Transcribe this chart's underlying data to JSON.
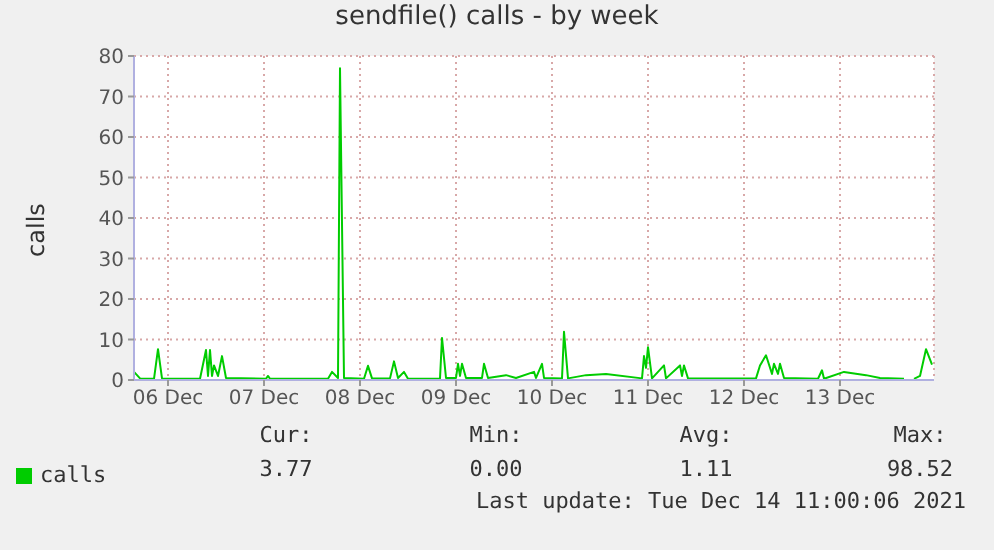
{
  "chart_data": {
    "type": "line",
    "title": "sendfile() calls - by week",
    "ylabel": "calls",
    "x": [
      "2021-12-06T03:30",
      "2021-12-06T05:00",
      "2021-12-06T08:30",
      "2021-12-06T09:30",
      "2021-12-06T10:30",
      "2021-12-06T20:00",
      "2021-12-06T21:30",
      "2021-12-06T22:00",
      "2021-12-06T22:30",
      "2021-12-06T23:00",
      "2021-12-06T23:30",
      "2021-12-07T00:30",
      "2021-12-07T01:30",
      "2021-12-07T02:30",
      "2021-12-07T12:30",
      "2021-12-07T13:00",
      "2021-12-07T13:30",
      "2021-12-08T04:00",
      "2021-12-08T05:00",
      "2021-12-08T06:30",
      "2021-12-08T07:00",
      "2021-12-08T08:00",
      "2021-12-08T13:00",
      "2021-12-08T14:00",
      "2021-12-08T15:00",
      "2021-12-08T19:30",
      "2021-12-08T20:30",
      "2021-12-08T21:30",
      "2021-12-08T23:00",
      "2021-12-09T00:00",
      "2021-12-09T08:00",
      "2021-12-09T08:30",
      "2021-12-09T09:30",
      "2021-12-09T12:00",
      "2021-12-09T12:30",
      "2021-12-09T13:00",
      "2021-12-09T13:30",
      "2021-12-09T14:30",
      "2021-12-09T18:30",
      "2021-12-09T19:00",
      "2021-12-09T20:00",
      "2021-12-10T00:30",
      "2021-12-10T03:00",
      "2021-12-10T07:30",
      "2021-12-10T08:00",
      "2021-12-10T09:30",
      "2021-12-10T10:00",
      "2021-12-10T14:30",
      "2021-12-10T15:00",
      "2021-12-10T16:00",
      "2021-12-10T20:30",
      "2021-12-11T01:30",
      "2021-12-11T10:30",
      "2021-12-11T11:00",
      "2021-12-11T11:30",
      "2021-12-11T12:00",
      "2021-12-11T13:00",
      "2021-12-11T16:00",
      "2021-12-11T16:30",
      "2021-12-11T20:00",
      "2021-12-11T20:30",
      "2021-12-11T21:00",
      "2021-12-11T22:00",
      "2021-12-12T15:00",
      "2021-12-12T16:00",
      "2021-12-12T17:30",
      "2021-12-12T19:00",
      "2021-12-12T19:30",
      "2021-12-12T20:30",
      "2021-12-12T21:00",
      "2021-12-12T22:00",
      "2021-12-13T06:30",
      "2021-12-13T07:30",
      "2021-12-13T08:00",
      "2021-12-13T13:00",
      "2021-12-13T18:30",
      "2021-12-13T22:00",
      "2021-12-14T04:00",
      "2021-12-14T05:00",
      "2021-12-14T06:30",
      "2021-12-14T08:00",
      "2021-12-14T09:30",
      "2021-12-14T11:00"
    ],
    "series": [
      {
        "name": "calls",
        "color": "#00cc00",
        "values": [
          2,
          0.4,
          0.3,
          7.6,
          0.4,
          0.3,
          7.4,
          1,
          7.4,
          1,
          3.6,
          1,
          5.9,
          0.5,
          0.3,
          1,
          0.3,
          0.3,
          2,
          0.5,
          77,
          0.5,
          0.3,
          3.5,
          0.4,
          0.4,
          4.6,
          0.5,
          2,
          0.3,
          0.4,
          10.4,
          0.5,
          0.5,
          4,
          1,
          4,
          0.5,
          0.5,
          4,
          0.5,
          1.2,
          0.5,
          2,
          0.5,
          4,
          0.5,
          0.4,
          11.9,
          0.4,
          1.2,
          1.5,
          0.4,
          5.9,
          3,
          8.1,
          0.4,
          3.6,
          0.4,
          3.6,
          1,
          3.6,
          0.4,
          0.4,
          3.6,
          6.1,
          1.5,
          4,
          1.5,
          4,
          0.5,
          0.3,
          2.4,
          0.3,
          2,
          1.2,
          0.5,
          0.3,
          null,
          0.3,
          1,
          7.6,
          3.8
        ]
      }
    ],
    "xlim": [
      "2021-12-06T03:30",
      "2021-12-14T11:30"
    ],
    "xticks": [
      {
        "value": "2021-12-06T12:00",
        "label": "06 Dec"
      },
      {
        "value": "2021-12-07T12:00",
        "label": "07 Dec"
      },
      {
        "value": "2021-12-08T12:00",
        "label": "08 Dec"
      },
      {
        "value": "2021-12-09T12:00",
        "label": "09 Dec"
      },
      {
        "value": "2021-12-10T12:00",
        "label": "10 Dec"
      },
      {
        "value": "2021-12-11T12:00",
        "label": "11 Dec"
      },
      {
        "value": "2021-12-12T12:00",
        "label": "12 Dec"
      },
      {
        "value": "2021-12-13T12:00",
        "label": "13 Dec"
      }
    ],
    "ylim": [
      0,
      80
    ],
    "yticks": [
      0,
      10,
      20,
      30,
      40,
      50,
      60,
      70,
      80
    ],
    "grid": true,
    "legend": "bottom left",
    "annotations": [
      "Cur:",
      "3.77",
      "Min:",
      "0.00",
      "Avg:",
      "1.11",
      "Max:",
      "98.52",
      "Last update: Tue Dec 14 11:00:06 2021"
    ]
  }
}
